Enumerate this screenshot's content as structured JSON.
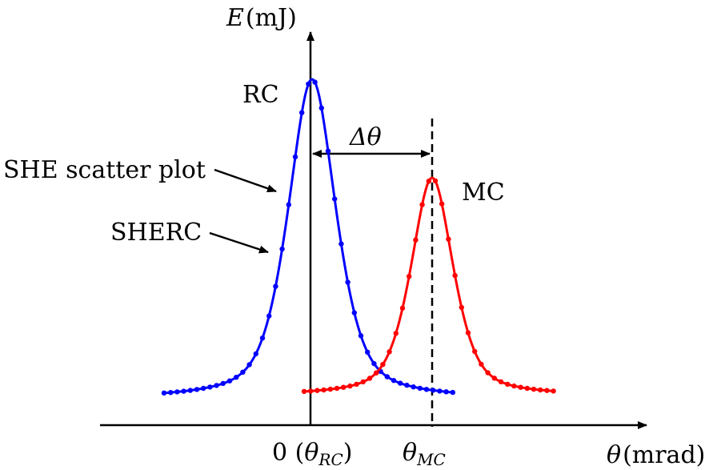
{
  "labels": {
    "y_axis_var": "E",
    "y_axis_unit": "(mJ)",
    "x_axis_var": "θ",
    "x_axis_unit": "(mrad)",
    "origin_tick": "0 (",
    "origin_theta": "θ",
    "origin_sub": "RC",
    "origin_close": ")",
    "mc_tick_theta": "θ",
    "mc_tick_sub": "MC",
    "rc_curve": "RC",
    "mc_curve": "MC",
    "delta_theta": "Δθ",
    "scatter_note": "SHE scatter plot",
    "sherc_note": "SHERC"
  },
  "colors": {
    "rc_curve": "#0000ff",
    "mc_curve": "#ff0000",
    "axes": "#000000"
  }
}
